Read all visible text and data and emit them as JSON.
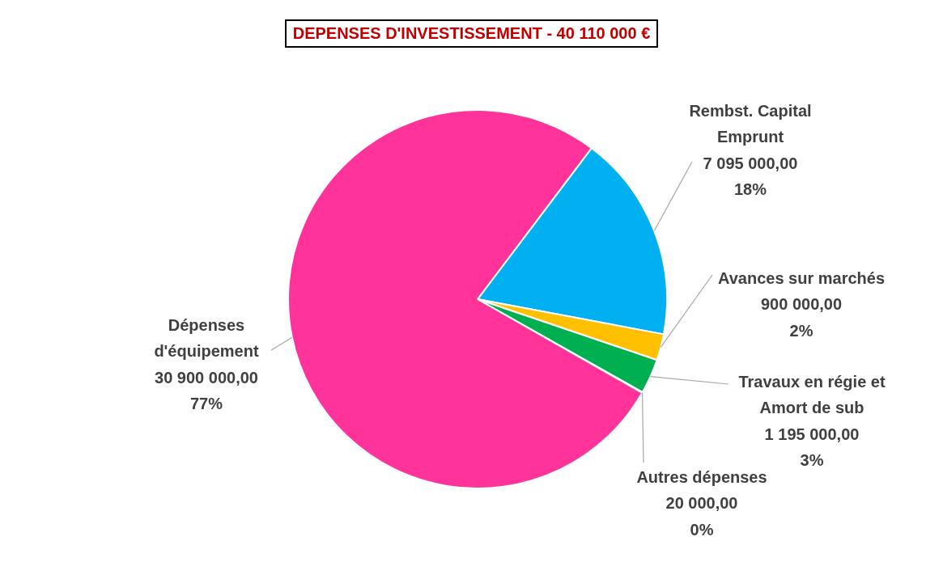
{
  "chart_data": {
    "type": "pie",
    "title": "DEPENSES D'INVESTISSEMENT - 40 110 000 €",
    "categories": [
      "Rembst. Capital Emprunt",
      "Avances sur marchés",
      "Travaux en régie et Amort de sub",
      "Autres dépenses",
      "Dépenses d'équipement"
    ],
    "values": [
      7095000,
      900000,
      1195000,
      20000,
      30900000
    ],
    "value_labels": [
      "7 095 000,00\n18%",
      "900 000,00\n2%",
      "1 195 000,00\n3%",
      "20 000,00\n0%",
      "30 900 000,00\n77%"
    ],
    "colors": [
      "#00b0f0",
      "#ffc000",
      "#00b050",
      "#7030a0",
      "#ff3399"
    ],
    "legend": false
  }
}
